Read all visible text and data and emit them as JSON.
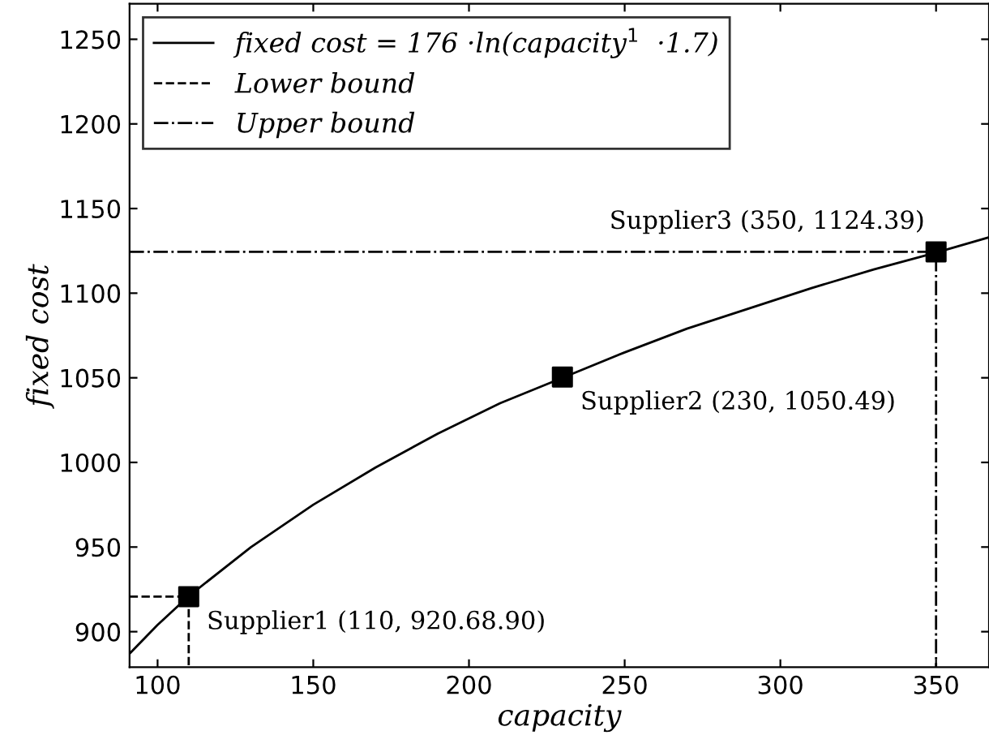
{
  "chart_data": {
    "type": "line",
    "xlabel": "capacity",
    "ylabel": "fixed cost",
    "xlim": [
      91,
      367
    ],
    "ylim": [
      879,
      1271
    ],
    "xticks": [
      100,
      150,
      200,
      250,
      300,
      350
    ],
    "yticks": [
      900,
      950,
      1000,
      1050,
      1100,
      1150,
      1200,
      1250
    ],
    "grid": false,
    "legend": "top left",
    "series": [
      {
        "name": "fixed cost = 176 ·ln(capacity$^{1}$  ·1.7)",
        "line_style": "solid",
        "color": "#000000",
        "x": [
          91,
          100,
          110,
          130,
          150,
          170,
          190,
          210,
          230,
          250,
          270,
          290,
          310,
          330,
          350,
          367
        ],
        "values": [
          887,
          904,
          921,
          950,
          975,
          997,
          1017,
          1035,
          1050,
          1065,
          1079,
          1091,
          1103,
          1114,
          1124,
          1133
        ]
      },
      {
        "name": "Lower bound",
        "type": "line",
        "line_style": "dashed",
        "color": "#000000",
        "x": [
          91,
          110,
          110
        ],
        "values": [
          920.68,
          920.68,
          879
        ]
      },
      {
        "name": "Upper bound",
        "type": "line",
        "line_style": "dashdot",
        "color": "#000000",
        "x": [
          91,
          350,
          350
        ],
        "values": [
          1124.39,
          1124.39,
          879
        ]
      },
      {
        "type": "scatter",
        "marker": "square",
        "color": "#000000",
        "x": [
          110,
          230,
          350
        ],
        "values": [
          920.68,
          1050.49,
          1124.39
        ]
      }
    ],
    "annotations": [
      {
        "text": "Supplier1 (110, 920.68.90)",
        "x": 110,
        "y": 920.68
      },
      {
        "text": "Supplier2 (230, 1050.49)",
        "x": 230,
        "y": 1050.49
      },
      {
        "text": "Supplier3 (350, 1124.39)",
        "x": 350,
        "y": 1124.39
      }
    ]
  }
}
